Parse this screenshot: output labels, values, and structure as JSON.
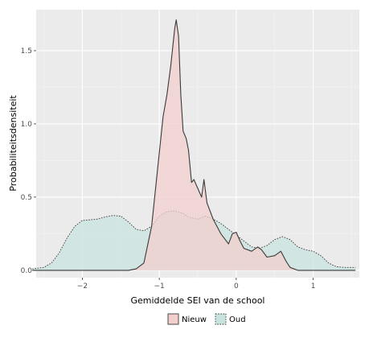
{
  "chart_data": {
    "type": "area",
    "title": "",
    "xlabel": "Gemiddelde SEI van de school",
    "ylabel": "Probabiliteitsdensiteit",
    "xlim": [
      -2.6,
      1.6
    ],
    "ylim": [
      -0.05,
      1.78
    ],
    "x_ticks": [
      -2,
      -1,
      0,
      1
    ],
    "x_tick_labels": [
      "−2",
      "−1",
      "0",
      "1"
    ],
    "y_ticks": [
      0.0,
      0.5,
      1.0,
      1.5
    ],
    "y_tick_labels": [
      "0.0",
      "0.5",
      "1.0",
      "1.5"
    ],
    "grid": true,
    "legend_position": "bottom",
    "series": [
      {
        "name": "Oud",
        "fill": "#c8e3df",
        "line_style": "dotted",
        "points": [
          [
            -2.65,
            0.01
          ],
          [
            -2.5,
            0.02
          ],
          [
            -2.4,
            0.05
          ],
          [
            -2.3,
            0.12
          ],
          [
            -2.2,
            0.22
          ],
          [
            -2.1,
            0.3
          ],
          [
            -2.0,
            0.34
          ],
          [
            -1.9,
            0.345
          ],
          [
            -1.8,
            0.35
          ],
          [
            -1.7,
            0.365
          ],
          [
            -1.6,
            0.375
          ],
          [
            -1.5,
            0.37
          ],
          [
            -1.4,
            0.33
          ],
          [
            -1.3,
            0.28
          ],
          [
            -1.2,
            0.27
          ],
          [
            -1.1,
            0.3
          ],
          [
            -1.0,
            0.37
          ],
          [
            -0.9,
            0.4
          ],
          [
            -0.8,
            0.405
          ],
          [
            -0.7,
            0.39
          ],
          [
            -0.6,
            0.36
          ],
          [
            -0.5,
            0.35
          ],
          [
            -0.4,
            0.37
          ],
          [
            -0.3,
            0.35
          ],
          [
            -0.2,
            0.32
          ],
          [
            -0.1,
            0.28
          ],
          [
            0.0,
            0.24
          ],
          [
            0.1,
            0.2
          ],
          [
            0.2,
            0.16
          ],
          [
            0.3,
            0.15
          ],
          [
            0.4,
            0.17
          ],
          [
            0.5,
            0.21
          ],
          [
            0.6,
            0.23
          ],
          [
            0.7,
            0.21
          ],
          [
            0.8,
            0.16
          ],
          [
            0.9,
            0.14
          ],
          [
            1.0,
            0.13
          ],
          [
            1.1,
            0.1
          ],
          [
            1.2,
            0.05
          ],
          [
            1.3,
            0.025
          ],
          [
            1.4,
            0.02
          ],
          [
            1.55,
            0.02
          ]
        ]
      },
      {
        "name": "Nieuw",
        "fill": "#f2cfcc",
        "line_style": "solid",
        "points": [
          [
            -2.65,
            0.0
          ],
          [
            -1.4,
            0.0
          ],
          [
            -1.3,
            0.01
          ],
          [
            -1.2,
            0.05
          ],
          [
            -1.1,
            0.3
          ],
          [
            -1.0,
            0.8
          ],
          [
            -0.95,
            1.05
          ],
          [
            -0.9,
            1.2
          ],
          [
            -0.85,
            1.4
          ],
          [
            -0.8,
            1.65
          ],
          [
            -0.78,
            1.71
          ],
          [
            -0.75,
            1.6
          ],
          [
            -0.72,
            1.2
          ],
          [
            -0.69,
            0.95
          ],
          [
            -0.65,
            0.9
          ],
          [
            -0.62,
            0.82
          ],
          [
            -0.58,
            0.6
          ],
          [
            -0.55,
            0.62
          ],
          [
            -0.5,
            0.56
          ],
          [
            -0.45,
            0.5
          ],
          [
            -0.42,
            0.62
          ],
          [
            -0.38,
            0.46
          ],
          [
            -0.3,
            0.35
          ],
          [
            -0.2,
            0.25
          ],
          [
            -0.1,
            0.18
          ],
          [
            -0.05,
            0.25
          ],
          [
            0.0,
            0.26
          ],
          [
            0.05,
            0.2
          ],
          [
            0.1,
            0.15
          ],
          [
            0.2,
            0.13
          ],
          [
            0.28,
            0.16
          ],
          [
            0.33,
            0.14
          ],
          [
            0.4,
            0.09
          ],
          [
            0.5,
            0.1
          ],
          [
            0.58,
            0.13
          ],
          [
            0.65,
            0.06
          ],
          [
            0.7,
            0.02
          ],
          [
            0.8,
            0.0
          ],
          [
            1.55,
            0.0
          ]
        ]
      }
    ],
    "legend": [
      {
        "name": "Nieuw",
        "fill": "#f2cfcc",
        "line_style": "solid"
      },
      {
        "name": "Oud",
        "fill": "#c8e3df",
        "line_style": "dotted"
      }
    ]
  },
  "colors": {
    "panel_background": "#ebebeb",
    "grid_major": "#ffffff",
    "grid_minor": "#f3f3f3",
    "outline": "#3a3a3a"
  }
}
